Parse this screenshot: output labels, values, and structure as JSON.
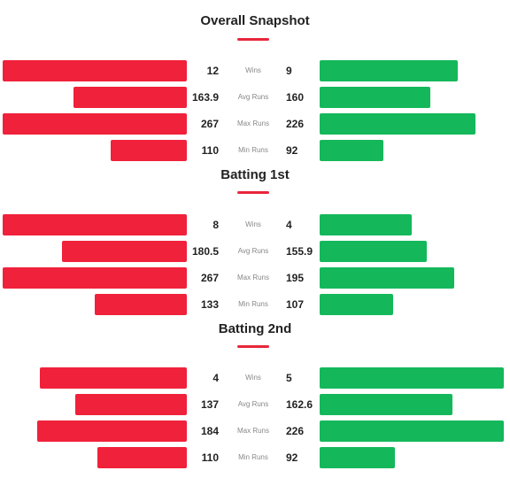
{
  "colors": {
    "team_a_bar": "#f0213a",
    "team_b_bar": "#14b85b",
    "accent_underline": "#e8263b"
  },
  "sections": [
    {
      "title": "Overall Snapshot",
      "rows": [
        {
          "label": "Wins",
          "left": "12",
          "right": "9",
          "left_value": 12,
          "right_value": 9,
          "max": 12
        },
        {
          "label": "Avg Runs",
          "left": "163.9",
          "right": "160",
          "left_value": 163.9,
          "right_value": 160,
          "max": 267
        },
        {
          "label": "Max Runs",
          "left": "267",
          "right": "226",
          "left_value": 267,
          "right_value": 226,
          "max": 267
        },
        {
          "label": "Min Runs",
          "left": "110",
          "right": "92",
          "left_value": 110,
          "right_value": 92,
          "max": 267
        }
      ]
    },
    {
      "title": "Batting 1st",
      "rows": [
        {
          "label": "Wins",
          "left": "8",
          "right": "4",
          "left_value": 8,
          "right_value": 4,
          "max": 8
        },
        {
          "label": "Avg Runs",
          "left": "180.5",
          "right": "155.9",
          "left_value": 180.5,
          "right_value": 155.9,
          "max": 267
        },
        {
          "label": "Max Runs",
          "left": "267",
          "right": "195",
          "left_value": 267,
          "right_value": 195,
          "max": 267
        },
        {
          "label": "Min Runs",
          "left": "133",
          "right": "107",
          "left_value": 133,
          "right_value": 107,
          "max": 267
        }
      ]
    },
    {
      "title": "Batting 2nd",
      "rows": [
        {
          "label": "Wins",
          "left": "4",
          "right": "5",
          "left_value": 4,
          "right_value": 5,
          "max": 5
        },
        {
          "label": "Avg Runs",
          "left": "137",
          "right": "162.6",
          "left_value": 137,
          "right_value": 162.6,
          "max": 226
        },
        {
          "label": "Max Runs",
          "left": "184",
          "right": "226",
          "left_value": 184,
          "right_value": 226,
          "max": 226
        },
        {
          "label": "Min Runs",
          "left": "110",
          "right": "92",
          "left_value": 110,
          "right_value": 92,
          "max": 226
        }
      ]
    }
  ]
}
